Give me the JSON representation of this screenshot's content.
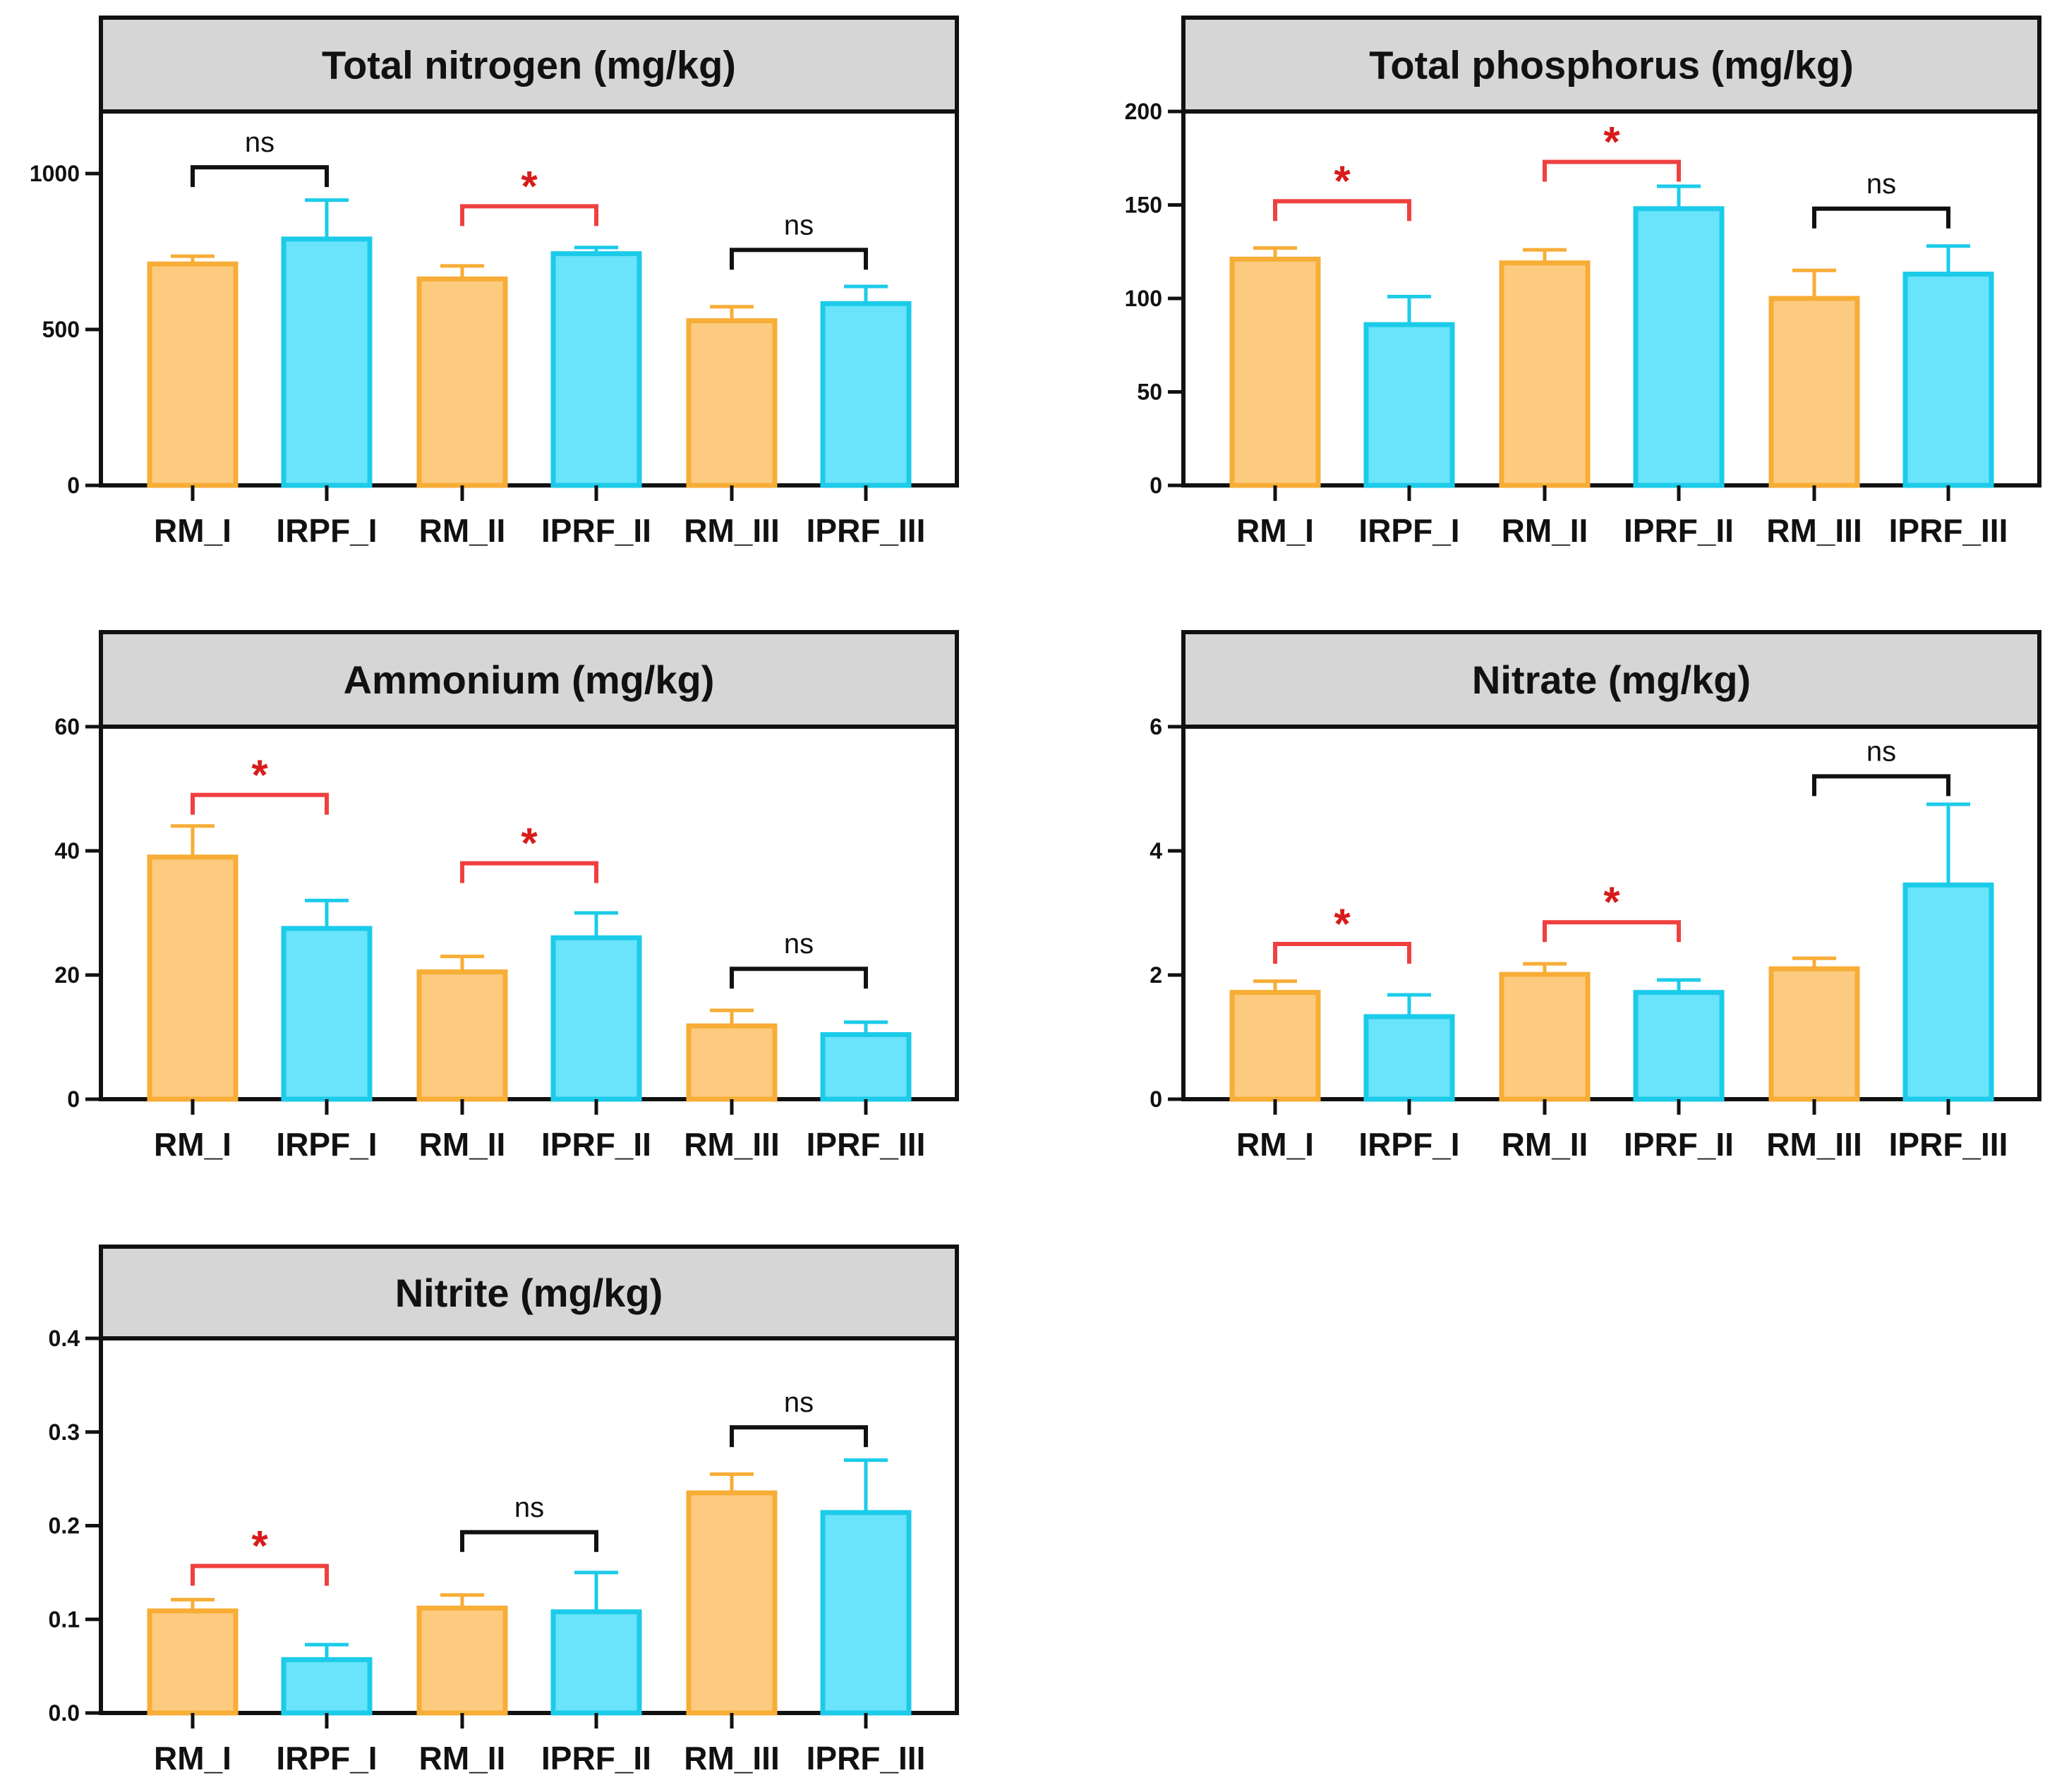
{
  "colors": {
    "rm_fill": "#fdcb7f",
    "rm_stroke": "#f7ad36",
    "iprf_fill": "#69e4fa",
    "iprf_stroke": "#1ccbe9",
    "sig_bracket": "#ef4040",
    "sig_text": "#d81b1b",
    "ns_bracket": "#111111",
    "title_bg": "#d6d6d6",
    "axis": "#111111"
  },
  "chart_data": [
    {
      "type": "bar",
      "title": "Total nitrogen (mg/kg)",
      "categories": [
        "RM_I",
        "IRPF_I",
        "RM_II",
        "IPRF_II",
        "RM_III",
        "IPRF_III"
      ],
      "groups": [
        "RM",
        "IPRF",
        "RM",
        "IPRF",
        "RM",
        "IPRF"
      ],
      "values": [
        710,
        790,
        662,
        743,
        528,
        583
      ],
      "errors": [
        25,
        125,
        42,
        20,
        45,
        55
      ],
      "yticks": [
        0,
        500,
        1000
      ],
      "ylim": [
        0,
        1200
      ],
      "comparisons": [
        {
          "pair": [
            0,
            1
          ],
          "label": "ns",
          "significant": false,
          "y": 1020
        },
        {
          "pair": [
            2,
            3
          ],
          "label": "*",
          "significant": true,
          "y": 895
        },
        {
          "pair": [
            4,
            5
          ],
          "label": "ns",
          "significant": false,
          "y": 755
        }
      ]
    },
    {
      "type": "bar",
      "title": "Total phosphorus (mg/kg)",
      "categories": [
        "RM_I",
        "IRPF_I",
        "RM_II",
        "IPRF_II",
        "RM_III",
        "IPRF_III"
      ],
      "groups": [
        "RM",
        "IPRF",
        "RM",
        "IPRF",
        "RM",
        "IPRF"
      ],
      "values": [
        121,
        86,
        119,
        148,
        100,
        113
      ],
      "errors": [
        6,
        15,
        7,
        12,
        15,
        15
      ],
      "yticks": [
        0,
        50,
        100,
        150,
        200
      ],
      "ylim": [
        0,
        200
      ],
      "comparisons": [
        {
          "pair": [
            0,
            1
          ],
          "label": "*",
          "significant": true,
          "y": 152
        },
        {
          "pair": [
            2,
            3
          ],
          "label": "*",
          "significant": true,
          "y": 173
        },
        {
          "pair": [
            4,
            5
          ],
          "label": "ns",
          "significant": false,
          "y": 148
        }
      ]
    },
    {
      "type": "bar",
      "title": "Ammonium (mg/kg)",
      "categories": [
        "RM_I",
        "IRPF_I",
        "RM_II",
        "IPRF_II",
        "RM_III",
        "IPRF_III"
      ],
      "groups": [
        "RM",
        "IPRF",
        "RM",
        "IPRF",
        "RM",
        "IPRF"
      ],
      "values": [
        39,
        27.5,
        20.5,
        26,
        11.8,
        10.4
      ],
      "errors": [
        5,
        4.5,
        2.5,
        4,
        2.5,
        2
      ],
      "yticks": [
        0,
        20,
        40,
        60
      ],
      "ylim": [
        0,
        60
      ],
      "comparisons": [
        {
          "pair": [
            0,
            1
          ],
          "label": "*",
          "significant": true,
          "y": 49
        },
        {
          "pair": [
            2,
            3
          ],
          "label": "*",
          "significant": true,
          "y": 38
        },
        {
          "pair": [
            4,
            5
          ],
          "label": "ns",
          "significant": false,
          "y": 21
        }
      ]
    },
    {
      "type": "bar",
      "title": "Nitrate (mg/kg)",
      "categories": [
        "RM_I",
        "IRPF_I",
        "RM_II",
        "IPRF_II",
        "RM_III",
        "IPRF_III"
      ],
      "groups": [
        "RM",
        "IPRF",
        "RM",
        "IPRF",
        "RM",
        "IPRF"
      ],
      "values": [
        1.72,
        1.33,
        2.01,
        1.72,
        2.1,
        3.45
      ],
      "errors": [
        0.18,
        0.35,
        0.17,
        0.2,
        0.17,
        1.3
      ],
      "yticks": [
        0,
        2,
        4,
        6
      ],
      "ylim": [
        0,
        6
      ],
      "comparisons": [
        {
          "pair": [
            0,
            1
          ],
          "label": "*",
          "significant": true,
          "y": 2.5
        },
        {
          "pair": [
            2,
            3
          ],
          "label": "*",
          "significant": true,
          "y": 2.85
        },
        {
          "pair": [
            4,
            5
          ],
          "label": "ns",
          "significant": false,
          "y": 5.2
        }
      ]
    },
    {
      "type": "bar",
      "title": "Nitrite (mg/kg)",
      "categories": [
        "RM_I",
        "IRPF_I",
        "RM_II",
        "IPRF_II",
        "RM_III",
        "IPRF_III"
      ],
      "groups": [
        "RM",
        "IPRF",
        "RM",
        "IPRF",
        "RM",
        "IPRF"
      ],
      "values": [
        0.109,
        0.057,
        0.112,
        0.108,
        0.235,
        0.214
      ],
      "errors": [
        0.012,
        0.016,
        0.014,
        0.042,
        0.02,
        0.056
      ],
      "yticks": [
        "0.0",
        "0.1",
        "0.2",
        "0.3",
        "0.4"
      ],
      "ylim": [
        0,
        0.4
      ],
      "comparisons": [
        {
          "pair": [
            0,
            1
          ],
          "label": "*",
          "significant": true,
          "y": 0.157
        },
        {
          "pair": [
            2,
            3
          ],
          "label": "ns",
          "significant": false,
          "y": 0.193
        },
        {
          "pair": [
            4,
            5
          ],
          "label": "ns",
          "significant": false,
          "y": 0.305
        }
      ]
    }
  ]
}
